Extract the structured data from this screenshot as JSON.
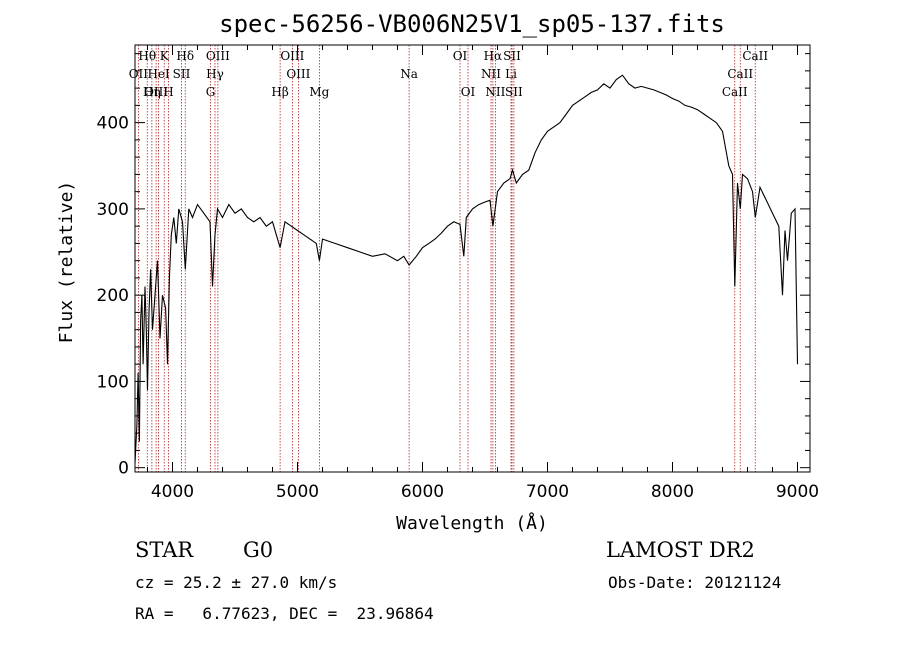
{
  "chart_data": {
    "type": "line",
    "title": "spec-56256-VB006N25V1_sp05-137.fits",
    "xlabel": "Wavelength (Å)",
    "ylabel": "Flux (relative)",
    "xlim": [
      3700,
      9100
    ],
    "ylim": [
      -5,
      490
    ],
    "xticks": [
      4000,
      5000,
      6000,
      7000,
      8000,
      9000
    ],
    "yticks": [
      0,
      100,
      200,
      300,
      400
    ],
    "grid": false,
    "series": [
      {
        "points": [
          [
            3700,
            5
          ],
          [
            3715,
            50
          ],
          [
            3725,
            110
          ],
          [
            3735,
            30
          ],
          [
            3745,
            170
          ],
          [
            3755,
            200
          ],
          [
            3765,
            120
          ],
          [
            3780,
            210
          ],
          [
            3790,
            160
          ],
          [
            3800,
            90
          ],
          [
            3812,
            180
          ],
          [
            3825,
            230
          ],
          [
            3840,
            160
          ],
          [
            3860,
            200
          ],
          [
            3880,
            240
          ],
          [
            3900,
            150
          ],
          [
            3920,
            200
          ],
          [
            3945,
            185
          ],
          [
            3960,
            120
          ],
          [
            3975,
            220
          ],
          [
            3990,
            270
          ],
          [
            4010,
            290
          ],
          [
            4030,
            260
          ],
          [
            4050,
            300
          ],
          [
            4080,
            285
          ],
          [
            4102,
            230
          ],
          [
            4130,
            300
          ],
          [
            4160,
            290
          ],
          [
            4200,
            305
          ],
          [
            4250,
            295
          ],
          [
            4300,
            285
          ],
          [
            4320,
            210
          ],
          [
            4340,
            270
          ],
          [
            4360,
            300
          ],
          [
            4400,
            290
          ],
          [
            4450,
            305
          ],
          [
            4500,
            295
          ],
          [
            4550,
            300
          ],
          [
            4600,
            290
          ],
          [
            4650,
            285
          ],
          [
            4700,
            290
          ],
          [
            4750,
            280
          ],
          [
            4800,
            285
          ],
          [
            4861,
            255
          ],
          [
            4900,
            285
          ],
          [
            4950,
            280
          ],
          [
            5000,
            275
          ],
          [
            5050,
            270
          ],
          [
            5100,
            265
          ],
          [
            5150,
            260
          ],
          [
            5175,
            240
          ],
          [
            5200,
            265
          ],
          [
            5300,
            260
          ],
          [
            5400,
            255
          ],
          [
            5500,
            250
          ],
          [
            5600,
            245
          ],
          [
            5700,
            248
          ],
          [
            5800,
            240
          ],
          [
            5850,
            245
          ],
          [
            5893,
            235
          ],
          [
            5950,
            245
          ],
          [
            6000,
            255
          ],
          [
            6050,
            260
          ],
          [
            6100,
            265
          ],
          [
            6150,
            272
          ],
          [
            6200,
            280
          ],
          [
            6250,
            285
          ],
          [
            6300,
            282
          ],
          [
            6330,
            245
          ],
          [
            6350,
            290
          ],
          [
            6400,
            300
          ],
          [
            6450,
            305
          ],
          [
            6500,
            308
          ],
          [
            6540,
            310
          ],
          [
            6563,
            280
          ],
          [
            6600,
            320
          ],
          [
            6650,
            330
          ],
          [
            6700,
            335
          ],
          [
            6720,
            345
          ],
          [
            6750,
            330
          ],
          [
            6800,
            340
          ],
          [
            6850,
            345
          ],
          [
            6900,
            365
          ],
          [
            6950,
            380
          ],
          [
            7000,
            390
          ],
          [
            7050,
            395
          ],
          [
            7100,
            400
          ],
          [
            7150,
            410
          ],
          [
            7200,
            420
          ],
          [
            7250,
            425
          ],
          [
            7300,
            430
          ],
          [
            7350,
            435
          ],
          [
            7400,
            438
          ],
          [
            7450,
            445
          ],
          [
            7500,
            440
          ],
          [
            7550,
            450
          ],
          [
            7600,
            455
          ],
          [
            7650,
            445
          ],
          [
            7700,
            440
          ],
          [
            7750,
            442
          ],
          [
            7800,
            440
          ],
          [
            7850,
            438
          ],
          [
            7900,
            435
          ],
          [
            7950,
            432
          ],
          [
            8000,
            428
          ],
          [
            8050,
            425
          ],
          [
            8100,
            420
          ],
          [
            8150,
            418
          ],
          [
            8200,
            415
          ],
          [
            8250,
            410
          ],
          [
            8300,
            405
          ],
          [
            8350,
            400
          ],
          [
            8400,
            390
          ],
          [
            8450,
            350
          ],
          [
            8480,
            340
          ],
          [
            8498,
            210
          ],
          [
            8520,
            330
          ],
          [
            8542,
            300
          ],
          [
            8560,
            340
          ],
          [
            8600,
            335
          ],
          [
            8640,
            320
          ],
          [
            8662,
            290
          ],
          [
            8700,
            325
          ],
          [
            8750,
            310
          ],
          [
            8800,
            295
          ],
          [
            8850,
            280
          ],
          [
            8880,
            200
          ],
          [
            8900,
            275
          ],
          [
            8920,
            240
          ],
          [
            8950,
            295
          ],
          [
            8980,
            300
          ],
          [
            9000,
            120
          ]
        ]
      }
    ],
    "line_markers": [
      {
        "label": "Hθ",
        "wl": 3798,
        "row": 0
      },
      {
        "label": "K",
        "wl": 3934,
        "row": 0
      },
      {
        "label": "Hδ",
        "wl": 4102,
        "row": 0
      },
      {
        "label": "OIII",
        "wl": 4363,
        "row": 0
      },
      {
        "label": "OIII",
        "wl": 4959,
        "row": 0
      },
      {
        "label": "OI",
        "wl": 6300,
        "row": 0
      },
      {
        "label": "Hα",
        "wl": 6563,
        "row": 0
      },
      {
        "label": "SII",
        "wl": 6716,
        "row": 0
      },
      {
        "label": "CaII",
        "wl": 8662,
        "row": 0
      },
      {
        "label": "OII",
        "wl": 3727,
        "row": 1
      },
      {
        "label": "HeI",
        "wl": 3889,
        "row": 1
      },
      {
        "label": "SII",
        "wl": 4072,
        "row": 1
      },
      {
        "label": "Hγ",
        "wl": 4340,
        "row": 1
      },
      {
        "label": "OIII",
        "wl": 5007,
        "row": 1
      },
      {
        "label": "Na",
        "wl": 5893,
        "row": 1
      },
      {
        "label": "NII",
        "wl": 6548,
        "row": 1
      },
      {
        "label": "Li",
        "wl": 6708,
        "row": 1
      },
      {
        "label": "CaII",
        "wl": 8542,
        "row": 1
      },
      {
        "label": "OIII",
        "wl": 3869,
        "row": 2
      },
      {
        "label": "Hη",
        "wl": 3835,
        "row": 2
      },
      {
        "label": "H",
        "wl": 3968,
        "row": 2
      },
      {
        "label": "G",
        "wl": 4304,
        "row": 2
      },
      {
        "label": "Hβ",
        "wl": 4861,
        "row": 2
      },
      {
        "label": "Mg",
        "wl": 5175,
        "row": 2
      },
      {
        "label": "OI",
        "wl": 6364,
        "row": 2
      },
      {
        "label": "NII",
        "wl": 6583,
        "row": 2
      },
      {
        "label": "SII",
        "wl": 6731,
        "row": 2
      },
      {
        "label": "CaII",
        "wl": 8498,
        "row": 2
      }
    ]
  },
  "info": {
    "class": "STAR",
    "subclass": "G0",
    "survey": "LAMOST DR2",
    "cz": "cz = 25.2 ± 27.0 km/s",
    "obs_date": "Obs-Date: 20121124",
    "radec": "RA =   6.77623, DEC =  23.96864"
  },
  "colors": {
    "spectrum": "#000000",
    "line_marker": "#b22222",
    "background": "#ffffff"
  }
}
